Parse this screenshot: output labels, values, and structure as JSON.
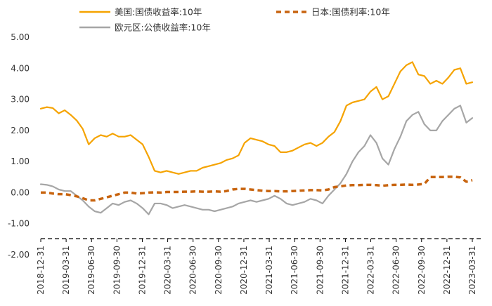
{
  "chart_data": {
    "type": "line",
    "title": "",
    "xlabel": "",
    "ylabel": "",
    "ylim": [
      -2.0,
      5.0
    ],
    "y_ticks": [
      "5.00",
      "4.00",
      "3.00",
      "2.00",
      "1.00",
      "0.00",
      "-1.00",
      "-2.00"
    ],
    "x_ticks": [
      "2018-12-31",
      "2019-03-31",
      "2019-06-30",
      "2019-09-30",
      "2019-12-31",
      "2020-03-31",
      "2020-06-30",
      "2020-09-30",
      "2020-12-31",
      "2021-03-31",
      "2021-06-30",
      "2021-09-30",
      "2021-12-31",
      "2022-03-31",
      "2022-06-30",
      "2022-09-30",
      "2022-12-31",
      "2023-03-31"
    ],
    "legend": {
      "placement": "top",
      "columns": 2
    },
    "grid": false,
    "series": [
      {
        "name": "美国:国债收益率:10年",
        "color": "#F5A300",
        "line_style": "solid",
        "values": [
          2.7,
          2.75,
          2.72,
          2.55,
          2.65,
          2.5,
          2.32,
          2.05,
          1.55,
          1.75,
          1.85,
          1.8,
          1.9,
          1.8,
          1.8,
          1.85,
          1.7,
          1.55,
          1.15,
          0.7,
          0.65,
          0.7,
          0.65,
          0.6,
          0.65,
          0.7,
          0.7,
          0.8,
          0.85,
          0.9,
          0.95,
          1.05,
          1.1,
          1.2,
          1.6,
          1.75,
          1.7,
          1.65,
          1.55,
          1.5,
          1.3,
          1.3,
          1.35,
          1.45,
          1.55,
          1.6,
          1.5,
          1.6,
          1.8,
          1.95,
          2.3,
          2.8,
          2.9,
          2.95,
          3.0,
          3.25,
          3.4,
          3.0,
          3.1,
          3.5,
          3.9,
          4.1,
          4.2,
          3.8,
          3.75,
          3.5,
          3.6,
          3.5,
          3.7,
          3.95,
          4.0,
          3.5,
          3.55
        ]
      },
      {
        "name": "日本:国债利率:10年",
        "color": "#C8640F",
        "line_style": "dashed",
        "values": [
          0.0,
          0.0,
          -0.03,
          -0.05,
          -0.05,
          -0.08,
          -0.12,
          -0.18,
          -0.25,
          -0.25,
          -0.2,
          -0.15,
          -0.1,
          -0.05,
          0.0,
          0.0,
          -0.03,
          -0.02,
          0.0,
          0.01,
          0.0,
          0.02,
          0.02,
          0.02,
          0.03,
          0.03,
          0.04,
          0.03,
          0.03,
          0.04,
          0.03,
          0.05,
          0.1,
          0.12,
          0.12,
          0.1,
          0.08,
          0.06,
          0.05,
          0.05,
          0.04,
          0.04,
          0.05,
          0.06,
          0.07,
          0.08,
          0.08,
          0.07,
          0.1,
          0.18,
          0.2,
          0.23,
          0.24,
          0.24,
          0.25,
          0.25,
          0.24,
          0.22,
          0.24,
          0.25,
          0.25,
          0.26,
          0.25,
          0.26,
          0.28,
          0.5,
          0.5,
          0.5,
          0.51,
          0.51,
          0.49,
          0.35,
          0.4
        ]
      },
      {
        "name": "欧元区:公债收益率:10年",
        "color": "#A6A6A6",
        "line_style": "solid",
        "values": [
          0.27,
          0.25,
          0.2,
          0.1,
          0.05,
          0.05,
          -0.1,
          -0.25,
          -0.45,
          -0.6,
          -0.65,
          -0.5,
          -0.35,
          -0.4,
          -0.3,
          -0.25,
          -0.35,
          -0.5,
          -0.7,
          -0.35,
          -0.35,
          -0.4,
          -0.5,
          -0.45,
          -0.4,
          -0.45,
          -0.5,
          -0.55,
          -0.55,
          -0.6,
          -0.55,
          -0.5,
          -0.45,
          -0.35,
          -0.3,
          -0.25,
          -0.3,
          -0.25,
          -0.2,
          -0.1,
          -0.2,
          -0.35,
          -0.4,
          -0.35,
          -0.3,
          -0.2,
          -0.25,
          -0.35,
          -0.1,
          0.1,
          0.3,
          0.6,
          1.0,
          1.3,
          1.5,
          1.85,
          1.6,
          1.1,
          0.9,
          1.4,
          1.8,
          2.3,
          2.5,
          2.6,
          2.2,
          2.0,
          2.0,
          2.3,
          2.5,
          2.7,
          2.8,
          2.25,
          2.4
        ]
      }
    ]
  }
}
